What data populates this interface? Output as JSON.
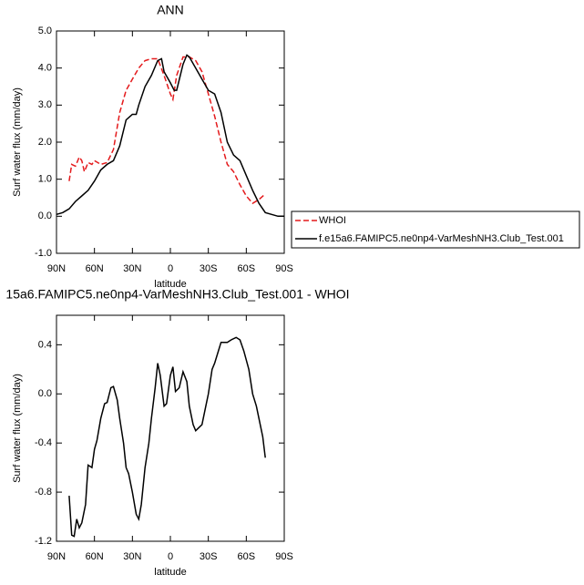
{
  "chart_data": [
    {
      "type": "line",
      "title": "ANN",
      "ylabel": "Surf water flux (mm/day)",
      "xlabel": "latitude",
      "xlim": [
        90,
        -90
      ],
      "xticks": [
        {
          "value": 90,
          "label": "90N"
        },
        {
          "value": 60,
          "label": "60N"
        },
        {
          "value": 30,
          "label": "30N"
        },
        0,
        {
          "value": -30,
          "label": "30S"
        },
        {
          "value": -60,
          "label": "60S"
        },
        {
          "value": -90,
          "label": "90S"
        }
      ],
      "ylim": [
        -1,
        5
      ],
      "yticks": [
        {
          "value": -1,
          "label": "-1.0"
        },
        {
          "value": 0,
          "label": "0.0"
        },
        {
          "value": 1,
          "label": "1.0"
        },
        {
          "value": 2,
          "label": "2.0"
        },
        {
          "value": 3,
          "label": "3.0"
        },
        {
          "value": 4,
          "label": "4.0"
        },
        {
          "value": 5,
          "label": "5.0"
        }
      ],
      "legend": "right",
      "series": [
        {
          "name": "WHOI",
          "color": "#e41a1c",
          "dashed": true,
          "x": [
            80,
            78,
            75,
            72,
            70,
            68,
            65,
            62,
            60,
            55,
            50,
            45,
            40,
            35,
            30,
            25,
            20,
            15,
            10,
            5,
            0,
            -2,
            -5,
            -10,
            -15,
            -20,
            -25,
            -30,
            -35,
            -40,
            -45,
            -50,
            -55,
            -60,
            -65,
            -70,
            -75
          ],
          "values": [
            0.95,
            1.4,
            1.35,
            1.6,
            1.5,
            1.2,
            1.45,
            1.4,
            1.5,
            1.4,
            1.45,
            1.8,
            2.8,
            3.4,
            3.7,
            4.0,
            4.2,
            4.25,
            4.25,
            3.8,
            3.3,
            3.15,
            3.8,
            4.3,
            4.3,
            4.2,
            3.9,
            3.3,
            2.7,
            2.0,
            1.4,
            1.2,
            0.85,
            0.55,
            0.35,
            0.45,
            0.6
          ]
        },
        {
          "name": "f.e15a6.FAMIPC5.ne0np4-VarMeshNH3.Club_Test.001",
          "color": "#000000",
          "dashed": false,
          "x": [
            90,
            85,
            80,
            75,
            70,
            65,
            60,
            55,
            50,
            45,
            40,
            35,
            30,
            27,
            25,
            20,
            15,
            10,
            7,
            5,
            0,
            -3,
            -5,
            -10,
            -13,
            -15,
            -20,
            -25,
            -30,
            -35,
            -40,
            -45,
            -50,
            -55,
            -60,
            -65,
            -70,
            -75,
            -80,
            -85,
            -90
          ],
          "values": [
            0.05,
            0.1,
            0.2,
            0.4,
            0.55,
            0.7,
            0.95,
            1.25,
            1.4,
            1.5,
            1.9,
            2.6,
            2.75,
            2.75,
            3.0,
            3.5,
            3.8,
            4.2,
            4.25,
            3.9,
            3.6,
            3.4,
            3.4,
            4.1,
            4.35,
            4.3,
            4.0,
            3.7,
            3.4,
            3.3,
            2.8,
            2.0,
            1.65,
            1.5,
            1.1,
            0.7,
            0.35,
            0.1,
            0.05,
            0.0,
            0.0
          ]
        }
      ]
    },
    {
      "type": "line",
      "title": "15a6.FAMIPC5.ne0np4-VarMeshNH3.Club_Test.001 - WHOI",
      "ylabel": "Surf water flux (mm/day)",
      "xlabel": "latitude",
      "xlim": [
        90,
        -90
      ],
      "xticks": [
        {
          "value": 90,
          "label": "90N"
        },
        {
          "value": 60,
          "label": "60N"
        },
        {
          "value": 30,
          "label": "30N"
        },
        0,
        {
          "value": -30,
          "label": "30S"
        },
        {
          "value": -60,
          "label": "60S"
        },
        {
          "value": -90,
          "label": "90S"
        }
      ],
      "ylim": [
        -1.2,
        0.64
      ],
      "yticks": [
        -1.2,
        -0.8,
        -0.4,
        {
          "value": 0,
          "label": "0.0"
        },
        0.4
      ],
      "series": [
        {
          "color": "#000000",
          "dashed": false,
          "x": [
            80,
            78,
            76,
            74,
            72,
            70,
            67,
            65,
            62,
            60,
            58,
            55,
            52,
            50,
            47,
            45,
            42,
            40,
            37,
            35,
            33,
            30,
            27,
            25,
            23,
            20,
            17,
            15,
            12,
            10,
            8,
            5,
            3,
            0,
            -2,
            -4,
            -7,
            -10,
            -13,
            -15,
            -18,
            -20,
            -23,
            -25,
            -28,
            -30,
            -33,
            -35,
            -40,
            -45,
            -48,
            -52,
            -55,
            -58,
            -62,
            -65,
            -68,
            -70,
            -73,
            -75
          ],
          "values": [
            -0.83,
            -1.15,
            -1.16,
            -1.02,
            -1.09,
            -1.05,
            -0.9,
            -0.58,
            -0.6,
            -0.45,
            -0.38,
            -0.2,
            -0.08,
            -0.07,
            0.05,
            0.06,
            -0.05,
            -0.2,
            -0.4,
            -0.6,
            -0.65,
            -0.8,
            -0.98,
            -1.02,
            -0.9,
            -0.6,
            -0.4,
            -0.2,
            0.05,
            0.25,
            0.15,
            -0.1,
            -0.08,
            0.15,
            0.22,
            0.02,
            0.05,
            0.18,
            0.1,
            -0.1,
            -0.25,
            -0.3,
            -0.27,
            -0.25,
            -0.1,
            0.0,
            0.2,
            0.25,
            0.42,
            0.42,
            0.44,
            0.46,
            0.44,
            0.35,
            0.2,
            0.0,
            -0.1,
            -0.2,
            -0.35,
            -0.52
          ]
        }
      ]
    }
  ]
}
